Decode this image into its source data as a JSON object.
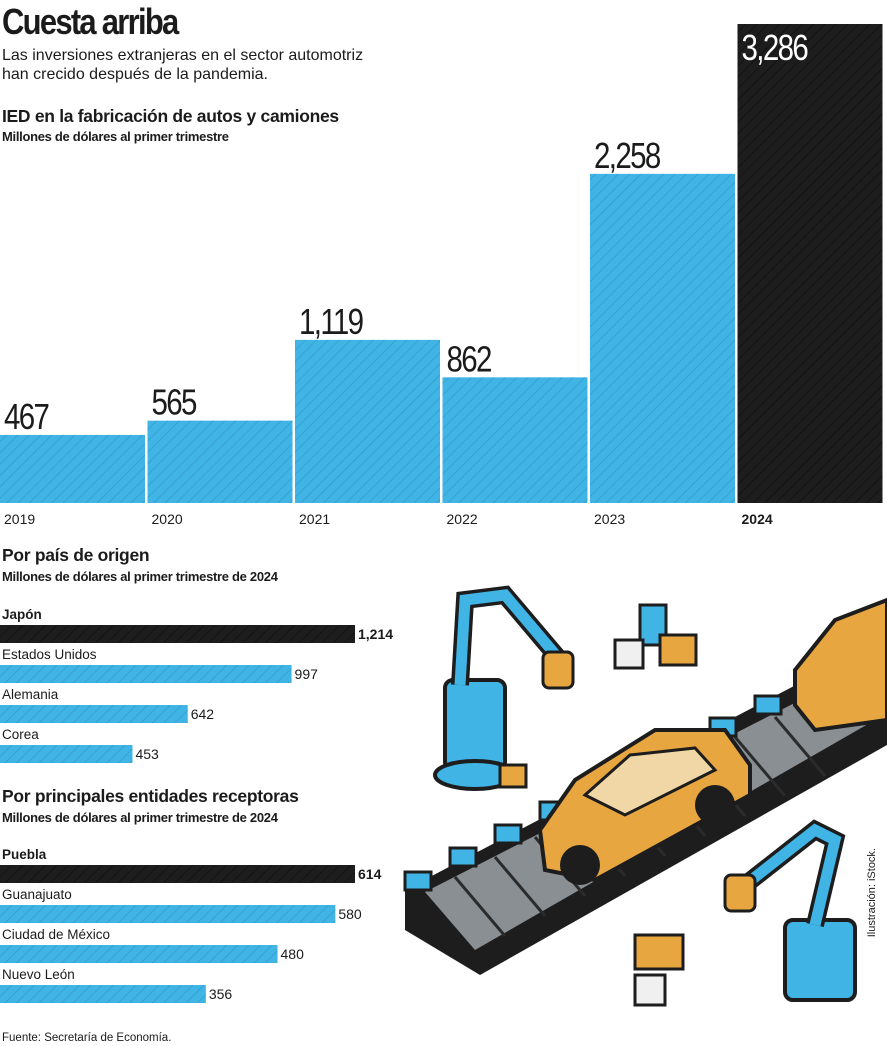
{
  "title": "Cuesta arriba",
  "subtitle": "Las inversiones extranjeras en el sector automotriz han crecido después de la pandemia.",
  "colors": {
    "bar": "#3fb4e5",
    "highlight": "#1d1d1d",
    "hatch": "#2a7fae"
  },
  "chart_data": [
    {
      "type": "bar",
      "title": "IED en la fabricación de autos y camiones",
      "subtitle": "Millones de dólares al primer trimestre",
      "categories": [
        "2019",
        "2020",
        "2021",
        "2022",
        "2023",
        "2024"
      ],
      "values": [
        467,
        565,
        1119,
        862,
        2258,
        3286
      ],
      "value_labels": [
        "467",
        "565",
        "1,119",
        "862",
        "2,258",
        "3,286"
      ],
      "highlight": "2024",
      "xlabel": "",
      "ylabel": ""
    },
    {
      "type": "bar",
      "orientation": "horizontal",
      "title": "Por país de origen",
      "subtitle": "Millones de dólares al primer trimestre de 2024",
      "categories": [
        "Japón",
        "Estados Unidos",
        "Alemania",
        "Corea"
      ],
      "values": [
        1214,
        997,
        642,
        453
      ],
      "value_labels": [
        "1,214",
        "997",
        "642",
        "453"
      ],
      "highlight": "Japón"
    },
    {
      "type": "bar",
      "orientation": "horizontal",
      "title": "Por principales entidades receptoras",
      "subtitle": "Millones de dólares al primer trimestre de 2024",
      "categories": [
        "Puebla",
        "Guanajuato",
        "Ciudad de México",
        "Nuevo León"
      ],
      "values": [
        614,
        580,
        480,
        356
      ],
      "value_labels": [
        "614",
        "580",
        "480",
        "356"
      ],
      "highlight": "Puebla"
    }
  ],
  "footer": "Fuente: Secretaría de Economía.",
  "credit": "Ilustración: iStock."
}
